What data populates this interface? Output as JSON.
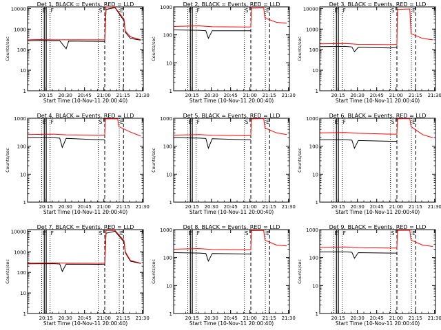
{
  "figure": {
    "xlabel": "Start Time (10-Nov-11 20:00:40)",
    "ylabel": "Counts/sec",
    "x_ticks": [
      "20:15",
      "20:30",
      "20:45",
      "21:00",
      "21:15",
      "21:30"
    ],
    "y_ticks": [
      "1",
      "10",
      "100",
      "1000",
      "10000"
    ],
    "marker_labels": [
      "E",
      "F",
      "S",
      "E"
    ],
    "colors": {
      "events": "#000000",
      "lld": "#ff0000",
      "axes": "#000000"
    }
  },
  "chart_data": [
    {
      "type": "line",
      "title": "Det 1, BLACK = Events, RED = LLD",
      "ylim": [
        1,
        12000
      ],
      "y_scale": "log",
      "series": [
        {
          "name": "BLACK = Events",
          "points": [
            [
              0,
              270
            ],
            [
              10,
              275
            ],
            [
              20,
              270
            ],
            [
              25,
              270
            ],
            [
              30,
              110
            ],
            [
              32,
              260
            ],
            [
              50,
              255
            ],
            [
              60,
              250
            ],
            [
              61,
              9000
            ],
            [
              68,
              11000
            ],
            [
              75,
              2500
            ],
            [
              76,
              700
            ],
            [
              80,
              350
            ],
            [
              88,
              290
            ]
          ]
        },
        {
          "name": "RED = LLD",
          "points": [
            [
              0,
              300
            ],
            [
              10,
              310
            ],
            [
              20,
              300
            ],
            [
              30,
              300
            ],
            [
              50,
              300
            ],
            [
              60,
              300
            ],
            [
              61,
              12000
            ],
            [
              68,
              11500
            ],
            [
              75,
              3000
            ],
            [
              76,
              800
            ],
            [
              80,
              420
            ],
            [
              88,
              300
            ]
          ]
        }
      ],
      "markers": {
        "dotted": [
          11,
          17.5,
          55,
          71.3
        ],
        "dashed": [
          60,
          74.6
        ],
        "spikes": [
          13,
          14.5
        ]
      }
    },
    {
      "type": "line",
      "title": "Det 2, BLACK = Events, RED = LLD",
      "ylim": [
        1,
        1000
      ],
      "y_scale": "log",
      "series": [
        {
          "name": "BLACK = Events",
          "points": [
            [
              0,
              150
            ],
            [
              20,
              145
            ],
            [
              25,
              140
            ],
            [
              27,
              75
            ],
            [
              30,
              140
            ],
            [
              55,
              140
            ],
            [
              60,
              140
            ]
          ]
        },
        {
          "name": "RED = LLD",
          "points": [
            [
              0,
              200
            ],
            [
              20,
              210
            ],
            [
              30,
              195
            ],
            [
              55,
              190
            ],
            [
              60,
              190
            ],
            [
              60.5,
              900
            ],
            [
              70,
              920
            ],
            [
              71,
              400
            ],
            [
              80,
              280
            ],
            [
              88,
              260
            ]
          ]
        }
      ],
      "markers": {
        "dotted": [
          11,
          17.5,
          55,
          71.3
        ],
        "dashed": [
          60,
          74.6
        ],
        "spikes": [
          13,
          14.5
        ]
      }
    },
    {
      "type": "line",
      "title": "Det 3, BLACK = Events, RED = LLD",
      "ylim": [
        1,
        12000
      ],
      "y_scale": "log",
      "series": [
        {
          "name": "BLACK = Events",
          "points": [
            [
              0,
              140
            ],
            [
              20,
              145
            ],
            [
              25,
              135
            ],
            [
              27,
              80
            ],
            [
              30,
              130
            ],
            [
              55,
              120
            ],
            [
              60,
              130
            ]
          ]
        },
        {
          "name": "RED = LLD",
          "points": [
            [
              0,
              190
            ],
            [
              20,
              200
            ],
            [
              30,
              180
            ],
            [
              55,
              175
            ],
            [
              60,
              180
            ],
            [
              60.5,
              9000
            ],
            [
              70,
              9500
            ],
            [
              71,
              600
            ],
            [
              80,
              350
            ],
            [
              88,
              300
            ]
          ]
        }
      ],
      "markers": {
        "dotted": [
          11,
          17.5,
          55,
          71.3
        ],
        "dashed": [
          60,
          74.6
        ],
        "spikes": [
          13,
          14.5
        ]
      }
    },
    {
      "type": "line",
      "title": "Det 4, BLACK = Events, RED = LLD",
      "ylim": [
        1,
        1000
      ],
      "y_scale": "log",
      "series": [
        {
          "name": "BLACK = Events",
          "points": [
            [
              0,
              200
            ],
            [
              20,
              200
            ],
            [
              25,
              195
            ],
            [
              27,
              90
            ],
            [
              30,
              190
            ],
            [
              55,
              170
            ],
            [
              60,
              170
            ]
          ]
        },
        {
          "name": "RED = LLD",
          "points": [
            [
              0,
              260
            ],
            [
              20,
              270
            ],
            [
              30,
              255
            ],
            [
              55,
              250
            ],
            [
              60,
              250
            ],
            [
              60.5,
              950
            ],
            [
              70,
              960
            ],
            [
              71,
              500
            ],
            [
              80,
              320
            ],
            [
              88,
              230
            ]
          ]
        }
      ],
      "markers": {
        "dotted": [
          11,
          17.5,
          55,
          71.3
        ],
        "dashed": [
          60,
          74.6
        ],
        "spikes": [
          13,
          14.5
        ]
      }
    },
    {
      "type": "line",
      "title": "Det 5, BLACK = Events, RED = LLD",
      "ylim": [
        1,
        1000
      ],
      "y_scale": "log",
      "series": [
        {
          "name": "BLACK = Events",
          "points": [
            [
              0,
              200
            ],
            [
              20,
              195
            ],
            [
              25,
              190
            ],
            [
              27,
              85
            ],
            [
              30,
              185
            ],
            [
              55,
              170
            ],
            [
              60,
              170
            ]
          ]
        },
        {
          "name": "RED = LLD",
          "points": [
            [
              0,
              250
            ],
            [
              20,
              260
            ],
            [
              30,
              245
            ],
            [
              55,
              240
            ],
            [
              60,
              240
            ],
            [
              60.5,
              950
            ],
            [
              70,
              970
            ],
            [
              71,
              450
            ],
            [
              80,
              300
            ],
            [
              88,
              260
            ]
          ]
        }
      ],
      "markers": {
        "dotted": [
          11,
          17.5,
          55,
          71.3
        ],
        "dashed": [
          60,
          74.6
        ],
        "spikes": [
          13,
          14.5
        ]
      }
    },
    {
      "type": "line",
      "title": "Det 6, BLACK = Events, RED = LLD",
      "ylim": [
        1,
        1000
      ],
      "y_scale": "log",
      "series": [
        {
          "name": "BLACK = Events",
          "points": [
            [
              0,
              170
            ],
            [
              20,
              170
            ],
            [
              25,
              165
            ],
            [
              27,
              85
            ],
            [
              30,
              160
            ],
            [
              55,
              150
            ],
            [
              60,
              150
            ]
          ]
        },
        {
          "name": "RED = LLD",
          "points": [
            [
              0,
              300
            ],
            [
              20,
              310
            ],
            [
              30,
              290
            ],
            [
              55,
              270
            ],
            [
              60,
              270
            ],
            [
              60.5,
              960
            ],
            [
              70,
              970
            ],
            [
              71,
              500
            ],
            [
              80,
              260
            ],
            [
              88,
              200
            ]
          ]
        }
      ],
      "markers": {
        "dotted": [
          11,
          17.5,
          55,
          71.3
        ],
        "dashed": [
          60,
          74.6
        ],
        "spikes": [
          13,
          14.5
        ]
      }
    },
    {
      "type": "line",
      "title": "Det 7, BLACK = Events, RED = LLD",
      "ylim": [
        1,
        12000
      ],
      "y_scale": "log",
      "series": [
        {
          "name": "BLACK = Events",
          "points": [
            [
              0,
              260
            ],
            [
              20,
              265
            ],
            [
              25,
              255
            ],
            [
              27,
              110
            ],
            [
              30,
              250
            ],
            [
              55,
              245
            ],
            [
              60,
              250
            ],
            [
              61,
              8000
            ],
            [
              68,
              10000
            ],
            [
              75,
              3000
            ],
            [
              76,
              900
            ],
            [
              80,
              350
            ],
            [
              88,
              270
            ]
          ]
        },
        {
          "name": "RED = LLD",
          "points": [
            [
              0,
              280
            ],
            [
              20,
              290
            ],
            [
              30,
              280
            ],
            [
              55,
              275
            ],
            [
              60,
              280
            ],
            [
              61,
              11000
            ],
            [
              68,
              11000
            ],
            [
              75,
              3500
            ],
            [
              76,
              1000
            ],
            [
              80,
              380
            ],
            [
              88,
              280
            ]
          ]
        }
      ],
      "markers": {
        "dotted": [
          11,
          17.5,
          55,
          71.3
        ],
        "dashed": [
          60,
          74.6
        ],
        "spikes": [
          13,
          14.5
        ]
      }
    },
    {
      "type": "line",
      "title": "Det 8, BLACK = Events, RED = LLD",
      "ylim": [
        1,
        1000
      ],
      "y_scale": "log",
      "series": [
        {
          "name": "BLACK = Events",
          "points": [
            [
              0,
              150
            ],
            [
              20,
              145
            ],
            [
              25,
              140
            ],
            [
              27,
              75
            ],
            [
              30,
              140
            ],
            [
              55,
              135
            ],
            [
              60,
              135
            ]
          ]
        },
        {
          "name": "RED = LLD",
          "points": [
            [
              0,
              200
            ],
            [
              20,
              210
            ],
            [
              30,
              195
            ],
            [
              55,
              190
            ],
            [
              60,
              190
            ],
            [
              60.5,
              920
            ],
            [
              70,
              930
            ],
            [
              71,
              420
            ],
            [
              80,
              280
            ],
            [
              88,
              260
            ]
          ]
        }
      ],
      "markers": {
        "dotted": [
          11,
          17.5,
          55,
          71.3
        ],
        "dashed": [
          60,
          74.6
        ],
        "spikes": [
          13,
          14.5
        ]
      }
    },
    {
      "type": "line",
      "title": "Det 9, BLACK = Events, RED = LLD",
      "ylim": [
        1,
        1000
      ],
      "y_scale": "log",
      "series": [
        {
          "name": "BLACK = Events",
          "points": [
            [
              0,
              160
            ],
            [
              20,
              160
            ],
            [
              25,
              155
            ],
            [
              27,
              95
            ],
            [
              30,
              150
            ],
            [
              55,
              145
            ],
            [
              60,
              145
            ]
          ]
        },
        {
          "name": "RED = LLD",
          "points": [
            [
              0,
              230
            ],
            [
              20,
              240
            ],
            [
              30,
              225
            ],
            [
              55,
              220
            ],
            [
              60,
              220
            ],
            [
              60.5,
              940
            ],
            [
              70,
              950
            ],
            [
              71,
              420
            ],
            [
              80,
              280
            ],
            [
              88,
              250
            ]
          ]
        }
      ],
      "markers": {
        "dotted": [
          11,
          17.5,
          55,
          71.3
        ],
        "dashed": [
          60,
          74.6
        ],
        "spikes": [
          13,
          14.5
        ]
      }
    }
  ]
}
